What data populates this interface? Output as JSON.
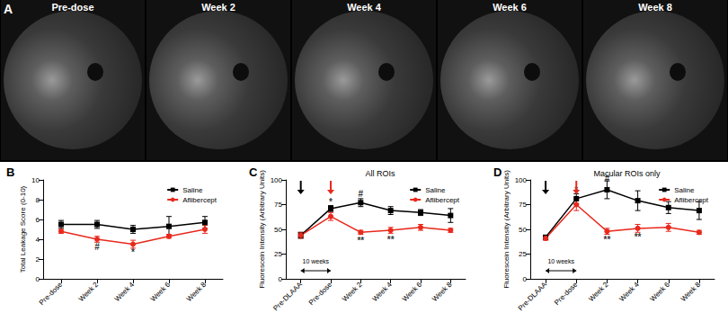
{
  "panel_a": {
    "label": "A",
    "images": [
      "Pre-dose",
      "Week 2",
      "Week 4",
      "Week 6",
      "Week 8"
    ]
  },
  "chart_data": [
    {
      "type": "line",
      "panel": "B",
      "y_label": "Total Leakage Score (0-10)",
      "categories": [
        "Pre-dose",
        "Week 2",
        "Week 4",
        "Week 6",
        "Week 8"
      ],
      "ylim": [
        0,
        10
      ],
      "yticks": [
        0,
        2,
        4,
        6,
        8,
        10
      ],
      "grid": false,
      "legend": "upper right",
      "series": [
        {
          "name": "Saline",
          "color": "#000000",
          "marker": "square",
          "values": [
            5.5,
            5.5,
            5.0,
            5.3,
            5.7
          ],
          "errors": [
            0.4,
            0.4,
            0.4,
            1.0,
            0.6
          ]
        },
        {
          "name": "Aflibercept",
          "color": "#e8291c",
          "marker": "circle",
          "values": [
            4.8,
            4.0,
            3.5,
            4.3,
            5.0
          ],
          "errors": [
            0.2,
            0.3,
            0.4,
            0.2,
            0.4
          ]
        }
      ],
      "annotations": [
        {
          "text": "#",
          "x": "Week 2",
          "y": 3.2
        },
        {
          "text": "*",
          "x": "Week 4",
          "y": 2.7
        }
      ]
    },
    {
      "type": "line",
      "panel": "C",
      "title": "All ROIs",
      "y_label": "Fluorescein Intensity (Arbitrary Units)",
      "categories": [
        "Pre-DLAAA",
        "Pre-dose",
        "Week 2",
        "Week 4",
        "Week 6",
        "Week 8"
      ],
      "ylim": [
        0,
        100
      ],
      "yticks": [
        0,
        25,
        50,
        75,
        100
      ],
      "grid": false,
      "legend": "upper right",
      "series": [
        {
          "name": "Saline",
          "color": "#000000",
          "marker": "square",
          "values": [
            44,
            71,
            77,
            69,
            67,
            64
          ],
          "errors": [
            3,
            3,
            4,
            4,
            3,
            7
          ]
        },
        {
          "name": "Aflibercept",
          "color": "#e8291c",
          "marker": "circle",
          "values": [
            44,
            63,
            47,
            49,
            52,
            49
          ],
          "errors": [
            3,
            4,
            2,
            3,
            3,
            2
          ]
        }
      ],
      "annotations": [
        {
          "text": "*",
          "x": "Pre-dose",
          "y": 78
        },
        {
          "text": "#",
          "x": "Week 2",
          "y": 86
        },
        {
          "text": "**",
          "x": "Week 2",
          "y": 39
        },
        {
          "text": "**",
          "x": "Week 4",
          "y": 40
        }
      ],
      "arrows": [
        {
          "x": "Pre-DLAAA",
          "color": "#000000"
        },
        {
          "x": "Pre-dose",
          "color": "#e8291c"
        }
      ],
      "span": {
        "text": "10 weeks",
        "from": "Pre-DLAAA",
        "to": "Pre-dose"
      }
    },
    {
      "type": "line",
      "panel": "D",
      "title": "Macular ROIs only",
      "y_label": "Fluorescein Intensity (Arbitrary Units)",
      "categories": [
        "Pre-DLAAA",
        "Pre-dose",
        "Week 2",
        "Week 4",
        "Week 6",
        "Week 8"
      ],
      "ylim": [
        0,
        100
      ],
      "yticks": [
        0,
        25,
        50,
        75,
        100
      ],
      "grid": false,
      "legend": "upper right",
      "series": [
        {
          "name": "Saline",
          "color": "#000000",
          "marker": "square",
          "values": [
            42,
            81,
            90,
            79,
            72,
            69
          ],
          "errors": [
            2,
            5,
            9,
            10,
            6,
            9
          ]
        },
        {
          "name": "Aflibercept",
          "color": "#e8291c",
          "marker": "circle",
          "values": [
            41,
            75,
            48,
            51,
            52,
            47
          ],
          "errors": [
            2,
            6,
            3,
            4,
            4,
            2
          ]
        }
      ],
      "annotations": [
        {
          "text": "*",
          "x": "Pre-dose",
          "y": 90
        },
        {
          "text": "#",
          "x": "Week 2",
          "y": 101
        },
        {
          "text": "**",
          "x": "Week 2",
          "y": 40
        },
        {
          "text": "**",
          "x": "Week 4",
          "y": 42
        }
      ],
      "arrows": [
        {
          "x": "Pre-DLAAA",
          "color": "#000000"
        },
        {
          "x": "Pre-dose",
          "color": "#e8291c"
        }
      ],
      "span": {
        "text": "10 weeks",
        "from": "Pre-DLAAA",
        "to": "Pre-dose"
      }
    }
  ]
}
